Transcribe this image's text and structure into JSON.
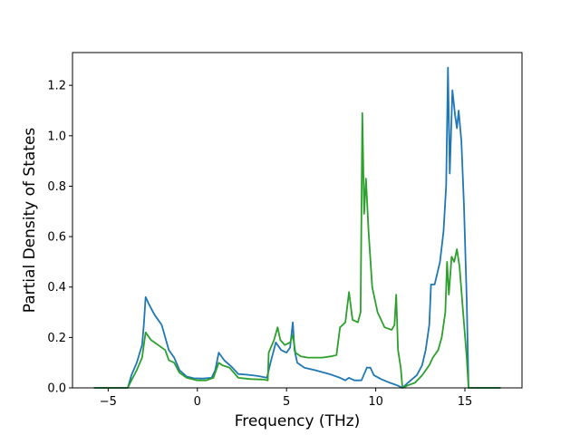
{
  "chart_data": {
    "type": "line",
    "title": "",
    "xlabel": "Frequency (THz)",
    "ylabel": "Partial Density of States",
    "xlim": [
      -7.0,
      18.2
    ],
    "ylim": [
      0.0,
      1.33
    ],
    "xticks": [
      -5,
      0,
      5,
      10,
      15
    ],
    "yticks": [
      0.0,
      0.2,
      0.4,
      0.6,
      0.8,
      1.0,
      1.2
    ],
    "xtick_labels": [
      "−5",
      "0",
      "5",
      "10",
      "15"
    ],
    "ytick_labels": [
      "0.0",
      "0.2",
      "0.4",
      "0.6",
      "0.8",
      "1.0",
      "1.2"
    ],
    "grid": false,
    "series": [
      {
        "color": "#1f77b4",
        "points": [
          [
            -5.8,
            0.0
          ],
          [
            -3.9,
            0.0
          ],
          [
            -3.7,
            0.05
          ],
          [
            -3.4,
            0.1
          ],
          [
            -3.1,
            0.17
          ],
          [
            -3.0,
            0.25
          ],
          [
            -2.9,
            0.36
          ],
          [
            -2.7,
            0.33
          ],
          [
            -2.4,
            0.29
          ],
          [
            -2.0,
            0.25
          ],
          [
            -1.6,
            0.15
          ],
          [
            -1.3,
            0.12
          ],
          [
            -1.0,
            0.07
          ],
          [
            -0.6,
            0.045
          ],
          [
            -0.2,
            0.038
          ],
          [
            0.3,
            0.037
          ],
          [
            0.8,
            0.04
          ],
          [
            1.0,
            0.07
          ],
          [
            1.2,
            0.14
          ],
          [
            1.5,
            0.11
          ],
          [
            1.9,
            0.085
          ],
          [
            2.3,
            0.055
          ],
          [
            2.8,
            0.052
          ],
          [
            3.4,
            0.047
          ],
          [
            3.9,
            0.04
          ],
          [
            4.1,
            0.1
          ],
          [
            4.4,
            0.18
          ],
          [
            4.7,
            0.15
          ],
          [
            5.0,
            0.14
          ],
          [
            5.2,
            0.16
          ],
          [
            5.35,
            0.26
          ],
          [
            5.45,
            0.15
          ],
          [
            5.6,
            0.1
          ],
          [
            6.0,
            0.08
          ],
          [
            6.6,
            0.07
          ],
          [
            7.4,
            0.055
          ],
          [
            8.0,
            0.04
          ],
          [
            8.3,
            0.03
          ],
          [
            8.5,
            0.04
          ],
          [
            8.8,
            0.03
          ],
          [
            9.2,
            0.03
          ],
          [
            9.5,
            0.08
          ],
          [
            9.7,
            0.08
          ],
          [
            9.9,
            0.05
          ],
          [
            10.3,
            0.035
          ],
          [
            10.8,
            0.02
          ],
          [
            11.2,
            0.01
          ],
          [
            11.5,
            0.0
          ],
          [
            11.8,
            0.02
          ],
          [
            12.3,
            0.05
          ],
          [
            12.6,
            0.09
          ],
          [
            12.8,
            0.15
          ],
          [
            13.0,
            0.25
          ],
          [
            13.1,
            0.41
          ],
          [
            13.3,
            0.41
          ],
          [
            13.6,
            0.5
          ],
          [
            13.8,
            0.62
          ],
          [
            13.95,
            0.8
          ],
          [
            14.05,
            1.27
          ],
          [
            14.15,
            0.85
          ],
          [
            14.3,
            1.18
          ],
          [
            14.45,
            1.08
          ],
          [
            14.55,
            1.03
          ],
          [
            14.65,
            1.1
          ],
          [
            14.8,
            0.98
          ],
          [
            14.95,
            0.72
          ],
          [
            15.1,
            0.35
          ],
          [
            15.2,
            0.0
          ],
          [
            17.0,
            0.0
          ]
        ]
      },
      {
        "color": "#2ca02c",
        "points": [
          [
            -5.8,
            0.0
          ],
          [
            -3.9,
            0.0
          ],
          [
            -3.7,
            0.03
          ],
          [
            -3.4,
            0.07
          ],
          [
            -3.1,
            0.12
          ],
          [
            -3.0,
            0.17
          ],
          [
            -2.9,
            0.22
          ],
          [
            -2.6,
            0.19
          ],
          [
            -2.2,
            0.17
          ],
          [
            -1.8,
            0.15
          ],
          [
            -1.6,
            0.11
          ],
          [
            -1.3,
            0.1
          ],
          [
            -1.0,
            0.06
          ],
          [
            -0.6,
            0.04
          ],
          [
            0.0,
            0.03
          ],
          [
            0.5,
            0.03
          ],
          [
            0.9,
            0.04
          ],
          [
            1.2,
            0.1
          ],
          [
            1.4,
            0.09
          ],
          [
            1.8,
            0.08
          ],
          [
            2.3,
            0.04
          ],
          [
            3.0,
            0.035
          ],
          [
            3.7,
            0.033
          ],
          [
            3.95,
            0.03
          ],
          [
            4.0,
            0.14
          ],
          [
            4.3,
            0.19
          ],
          [
            4.5,
            0.24
          ],
          [
            4.65,
            0.19
          ],
          [
            4.9,
            0.17
          ],
          [
            5.2,
            0.18
          ],
          [
            5.35,
            0.21
          ],
          [
            5.5,
            0.14
          ],
          [
            5.8,
            0.125
          ],
          [
            6.2,
            0.12
          ],
          [
            7.0,
            0.12
          ],
          [
            7.5,
            0.125
          ],
          [
            7.8,
            0.13
          ],
          [
            8.0,
            0.24
          ],
          [
            8.3,
            0.26
          ],
          [
            8.5,
            0.38
          ],
          [
            8.7,
            0.27
          ],
          [
            9.0,
            0.26
          ],
          [
            9.15,
            0.3
          ],
          [
            9.25,
            1.09
          ],
          [
            9.35,
            0.69
          ],
          [
            9.45,
            0.83
          ],
          [
            9.6,
            0.62
          ],
          [
            9.8,
            0.4
          ],
          [
            10.1,
            0.3
          ],
          [
            10.5,
            0.24
          ],
          [
            10.9,
            0.23
          ],
          [
            11.05,
            0.25
          ],
          [
            11.15,
            0.37
          ],
          [
            11.25,
            0.15
          ],
          [
            11.4,
            0.08
          ],
          [
            11.5,
            0.0
          ],
          [
            11.8,
            0.01
          ],
          [
            12.2,
            0.02
          ],
          [
            12.6,
            0.05
          ],
          [
            13.0,
            0.09
          ],
          [
            13.2,
            0.12
          ],
          [
            13.5,
            0.15
          ],
          [
            13.7,
            0.2
          ],
          [
            13.9,
            0.3
          ],
          [
            14.0,
            0.5
          ],
          [
            14.1,
            0.37
          ],
          [
            14.25,
            0.52
          ],
          [
            14.4,
            0.5
          ],
          [
            14.55,
            0.55
          ],
          [
            14.7,
            0.48
          ],
          [
            14.9,
            0.3
          ],
          [
            15.1,
            0.12
          ],
          [
            15.2,
            0.0
          ],
          [
            17.0,
            0.0
          ]
        ]
      }
    ]
  }
}
